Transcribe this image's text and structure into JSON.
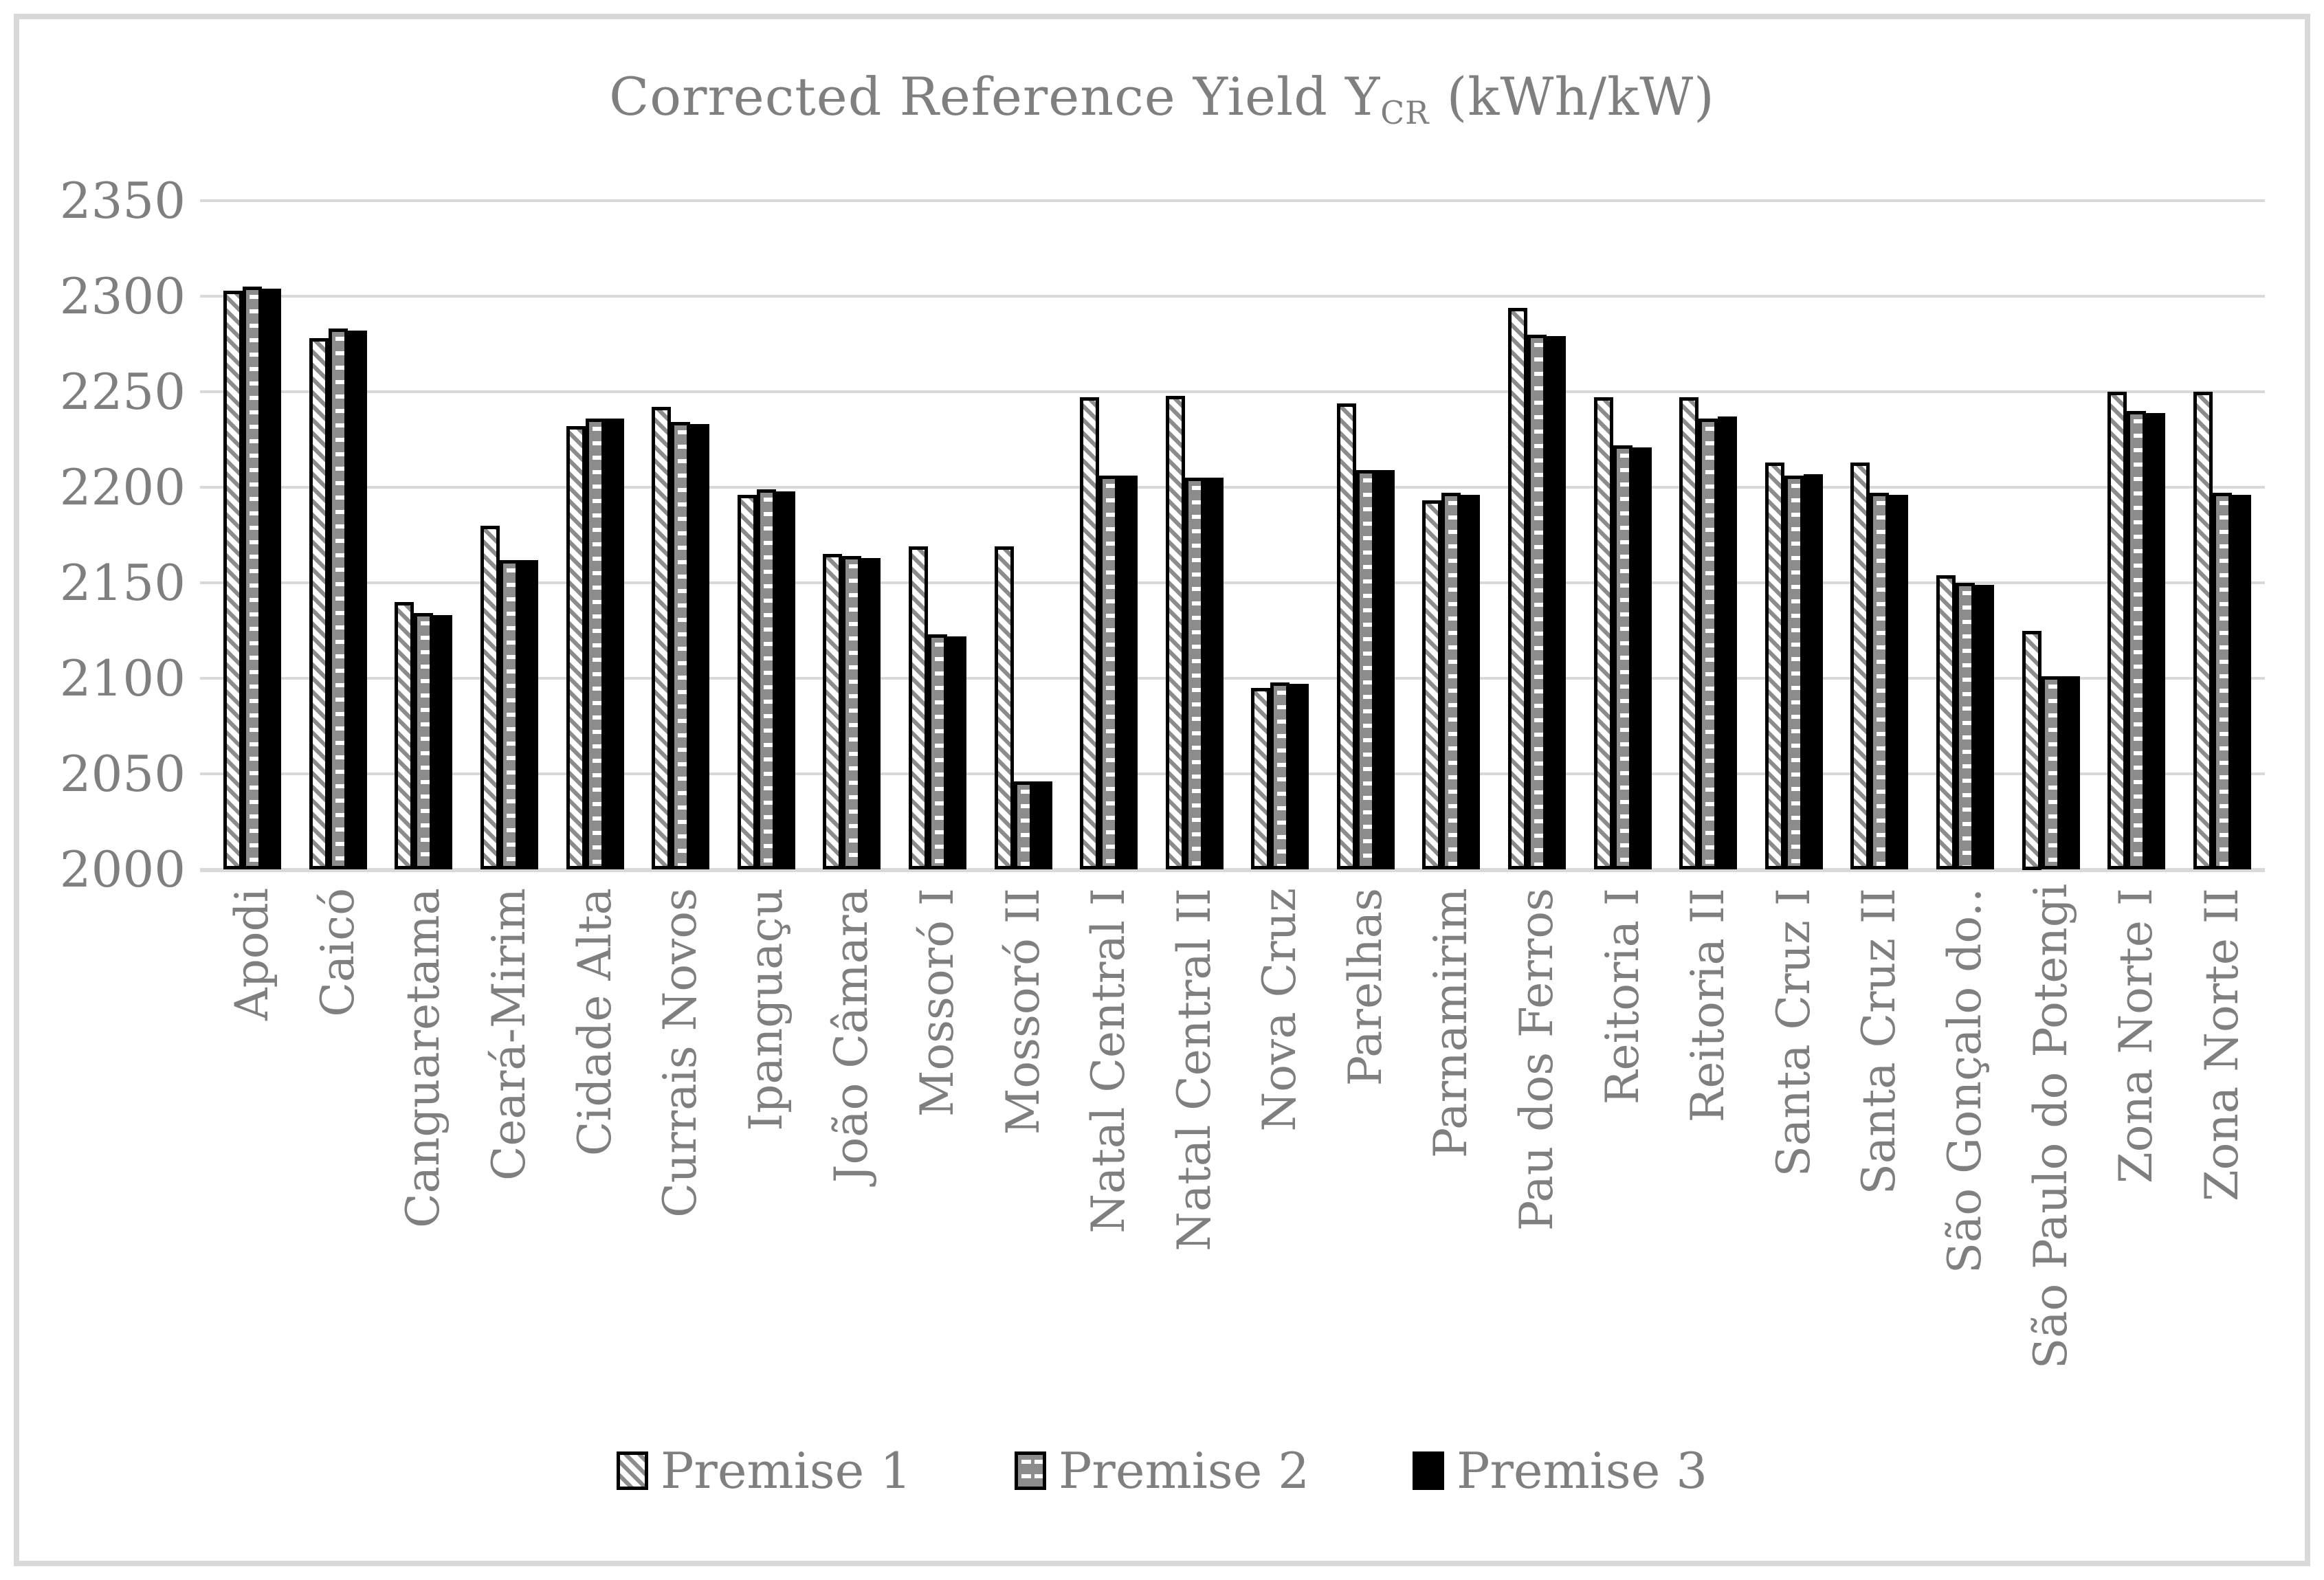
{
  "page": {
    "background": "#ffffff",
    "frame_border_color": "#d9d9d9"
  },
  "chart_data": {
    "type": "bar",
    "title": "Corrected Reference Yield YCR (kWh/kW)",
    "title_parts": {
      "prefix": "Corrected Reference Yield Y",
      "subscript": "CR",
      "suffix": " (kWh/kW)"
    },
    "categories": [
      "Apodi",
      "Caicó",
      "Canguaretama",
      "Ceará-Mirim",
      "Cidade Alta",
      "Currais Novos",
      "Ipanguaçu",
      "João Câmara",
      "Mossoró I",
      "Mossoró II",
      "Natal Central I",
      "Natal Central II",
      "Nova Cruz",
      "Parelhas",
      "Parnamirim",
      "Pau dos Ferros",
      "Reitoria I",
      "Reitoria II",
      "Santa Cruz I",
      "Santa Cruz II",
      "São Gonçalo do..",
      "São Paulo do Potengi",
      "Zona Norte I",
      "Zona Norte II"
    ],
    "series": [
      {
        "name": "Premise 1",
        "pattern": "white-diagonal-hatch",
        "values": [
          2303,
          2278,
          2140,
          2180,
          2232,
          2242,
          2196,
          2165,
          2169,
          2169,
          2247,
          2248,
          2095,
          2244,
          2193,
          2294,
          2247,
          2247,
          2213,
          2213,
          2154,
          2125,
          2250,
          2250
        ]
      },
      {
        "name": "Premise 2",
        "pattern": "gray-white-dash",
        "values": [
          2305,
          2283,
          2134,
          2162,
          2236,
          2234,
          2199,
          2164,
          2123,
          2046,
          2206,
          2205,
          2098,
          2209,
          2197,
          2280,
          2222,
          2236,
          2206,
          2197,
          2150,
          2101,
          2240,
          2197
        ]
      },
      {
        "name": "Premise 3",
        "pattern": "solid-black",
        "values": [
          2304,
          2282,
          2133,
          2162,
          2236,
          2233,
          2198,
          2163,
          2122,
          2046,
          2206,
          2205,
          2097,
          2209,
          2196,
          2279,
          2221,
          2237,
          2207,
          2196,
          2149,
          2101,
          2239,
          2196
        ]
      }
    ],
    "ylim": [
      2000,
      2350
    ],
    "ytick_step": 50,
    "yticks": [
      2000,
      2050,
      2100,
      2150,
      2200,
      2250,
      2300,
      2350
    ],
    "grid": true,
    "legend_position": "bottom",
    "colors": {
      "text": "#7f7f7f",
      "gridline": "#d9d9d9",
      "bar_gray": "#8c8c8c",
      "bar_black": "#000000",
      "bar_white": "#ffffff"
    }
  }
}
